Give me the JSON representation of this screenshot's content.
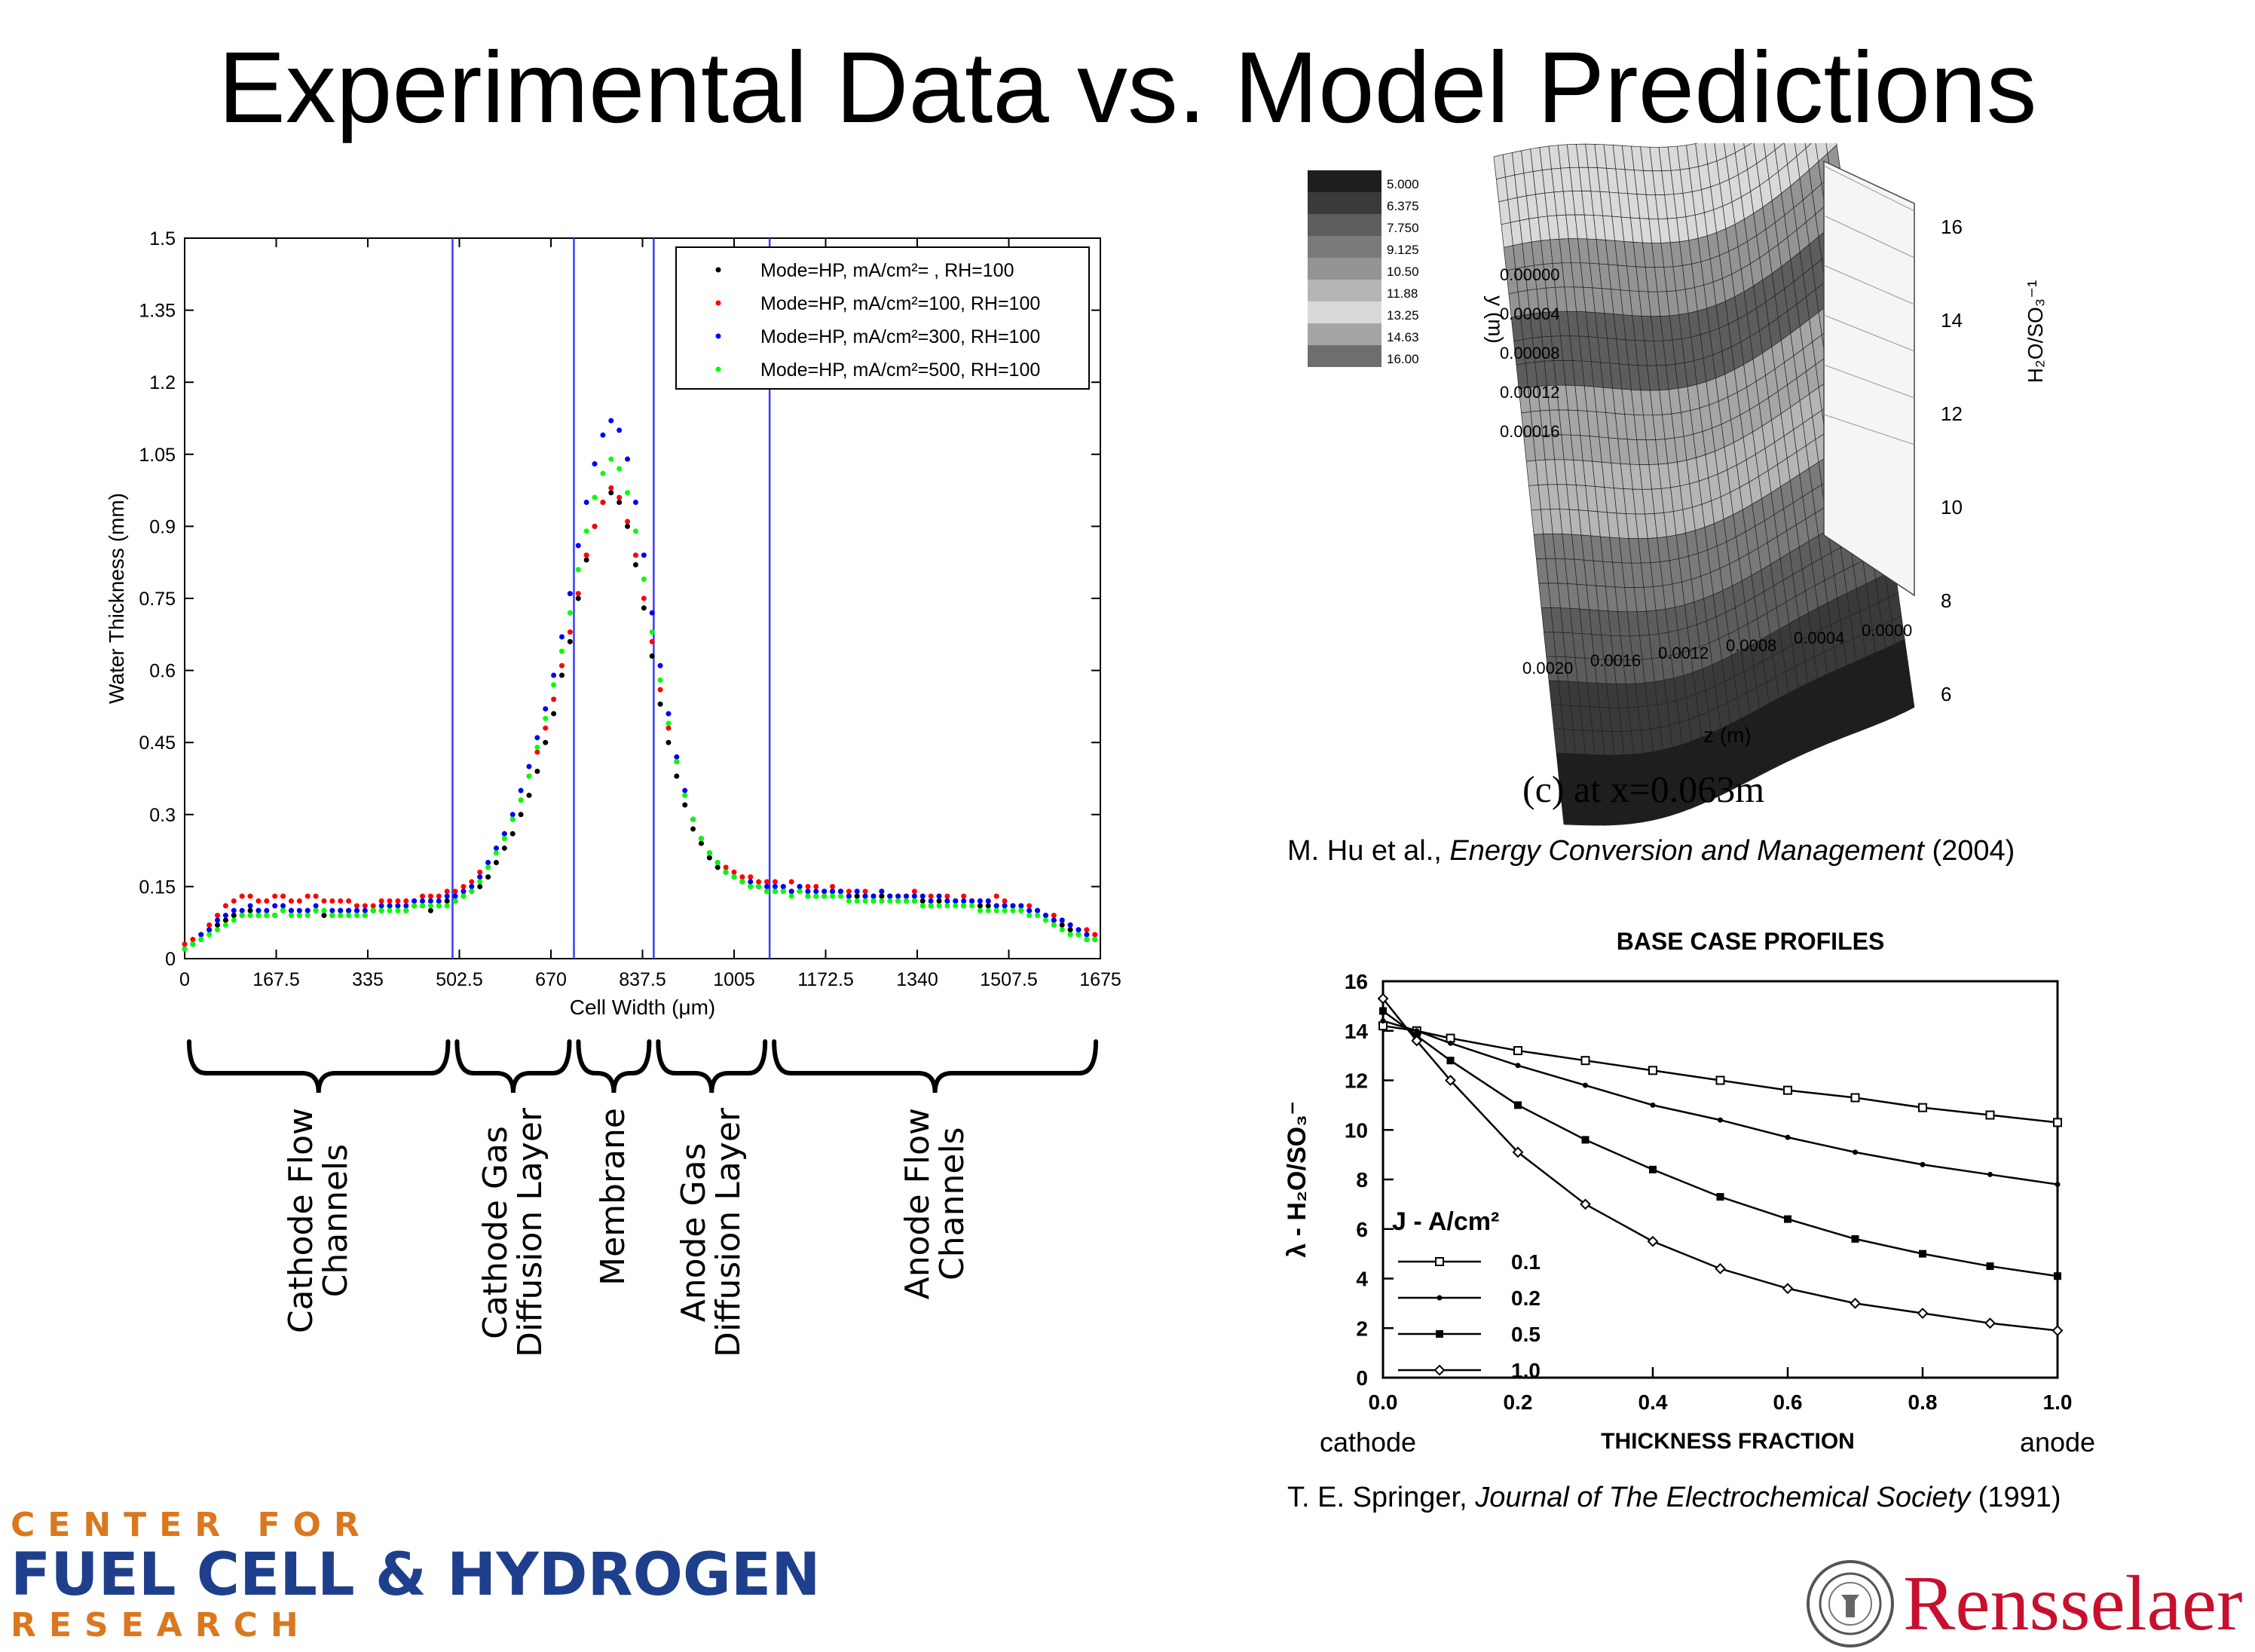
{
  "slide_title": "Experimental Data vs. Model Predictions",
  "chart_data": [
    {
      "type": "scatter",
      "ylabel": "Water Thickness (mm)",
      "xlabel": "Cell Width (μm)",
      "xlim": [
        0,
        1675
      ],
      "ylim": [
        0,
        1.5
      ],
      "x_ticks": [
        0,
        167.5,
        335,
        502.5,
        670,
        837.5,
        1005,
        1172.5,
        1340,
        1507.5,
        1675
      ],
      "x_tick_labels": [
        "0",
        "167.5",
        "335",
        "502.5",
        "670",
        "837.5",
        "1005",
        "1172.5",
        "1340",
        "1507.5",
        "1675"
      ],
      "y_ticks": [
        0,
        0.15,
        0.3,
        0.45,
        0.6,
        0.75,
        0.9,
        1.05,
        1.2,
        1.35,
        1.5
      ],
      "y_tick_labels": [
        "0",
        "0.15",
        "0.3",
        "0.45",
        "0.6",
        "0.75",
        "0.9",
        "1.05",
        "1.2",
        "1.35",
        "1.5"
      ],
      "vertical_lines_x": [
        490,
        712,
        858,
        1070
      ],
      "legend_position": "top-right",
      "x": [
        0,
        15,
        30,
        45,
        60,
        75,
        90,
        105,
        120,
        135,
        150,
        165,
        180,
        195,
        210,
        225,
        240,
        255,
        270,
        285,
        300,
        315,
        330,
        345,
        360,
        375,
        390,
        405,
        420,
        435,
        450,
        465,
        480,
        495,
        510,
        525,
        540,
        555,
        570,
        585,
        600,
        615,
        630,
        645,
        660,
        675,
        690,
        705,
        720,
        735,
        750,
        765,
        780,
        795,
        810,
        825,
        840,
        855,
        870,
        885,
        900,
        915,
        930,
        945,
        960,
        975,
        990,
        1005,
        1020,
        1035,
        1050,
        1065,
        1080,
        1095,
        1110,
        1125,
        1140,
        1155,
        1170,
        1185,
        1200,
        1215,
        1230,
        1245,
        1260,
        1275,
        1290,
        1305,
        1320,
        1335,
        1350,
        1365,
        1380,
        1395,
        1410,
        1425,
        1440,
        1455,
        1470,
        1485,
        1500,
        1515,
        1530,
        1545,
        1560,
        1575,
        1590,
        1605,
        1620,
        1635,
        1650,
        1665
      ],
      "series": [
        {
          "name": "Mode=HP, mA/cm²=   , RH=100",
          "color": "#000000",
          "values": [
            0.02,
            0.03,
            0.04,
            0.06,
            0.07,
            0.08,
            0.09,
            0.09,
            0.1,
            0.1,
            0.09,
            0.09,
            0.1,
            0.1,
            0.09,
            0.1,
            0.1,
            0.09,
            0.09,
            0.1,
            0.1,
            0.1,
            0.09,
            0.1,
            0.1,
            0.11,
            0.11,
            0.1,
            0.11,
            0.11,
            0.1,
            0.11,
            0.12,
            0.12,
            0.13,
            0.14,
            0.15,
            0.17,
            0.2,
            0.23,
            0.26,
            0.3,
            0.34,
            0.39,
            0.45,
            0.51,
            0.59,
            0.66,
            0.75,
            0.83,
            0.9,
            0.95,
            0.97,
            0.95,
            0.9,
            0.82,
            0.73,
            0.63,
            0.53,
            0.45,
            0.38,
            0.32,
            0.27,
            0.24,
            0.21,
            0.19,
            0.18,
            0.17,
            0.16,
            0.15,
            0.15,
            0.14,
            0.14,
            0.14,
            0.14,
            0.14,
            0.13,
            0.13,
            0.13,
            0.14,
            0.14,
            0.13,
            0.13,
            0.13,
            0.12,
            0.13,
            0.13,
            0.12,
            0.12,
            0.12,
            0.12,
            0.11,
            0.12,
            0.12,
            0.12,
            0.11,
            0.12,
            0.11,
            0.11,
            0.11,
            0.11,
            0.11,
            0.1,
            0.1,
            0.1,
            0.09,
            0.08,
            0.07,
            0.06,
            0.05,
            0.04,
            0.04
          ]
        },
        {
          "name": "Mode=HP, mA/cm²=100, RH=100",
          "color": "#ff0000",
          "values": [
            0.03,
            0.04,
            0.05,
            0.07,
            0.09,
            0.11,
            0.12,
            0.13,
            0.13,
            0.12,
            0.12,
            0.13,
            0.13,
            0.12,
            0.12,
            0.13,
            0.13,
            0.12,
            0.12,
            0.12,
            0.12,
            0.11,
            0.11,
            0.11,
            0.12,
            0.12,
            0.12,
            0.12,
            0.12,
            0.13,
            0.13,
            0.13,
            0.14,
            0.14,
            0.15,
            0.16,
            0.18,
            0.2,
            0.23,
            0.26,
            0.29,
            0.33,
            0.38,
            0.43,
            0.48,
            0.54,
            0.61,
            0.68,
            0.76,
            0.84,
            0.9,
            0.95,
            0.98,
            0.96,
            0.91,
            0.84,
            0.75,
            0.66,
            0.56,
            0.48,
            0.41,
            0.34,
            0.29,
            0.25,
            0.22,
            0.2,
            0.19,
            0.18,
            0.17,
            0.17,
            0.16,
            0.16,
            0.16,
            0.15,
            0.16,
            0.15,
            0.15,
            0.15,
            0.14,
            0.15,
            0.14,
            0.14,
            0.14,
            0.14,
            0.13,
            0.14,
            0.13,
            0.13,
            0.13,
            0.14,
            0.13,
            0.13,
            0.13,
            0.13,
            0.12,
            0.13,
            0.12,
            0.12,
            0.12,
            0.13,
            0.12,
            0.11,
            0.11,
            0.11,
            0.1,
            0.09,
            0.09,
            0.08,
            0.07,
            0.06,
            0.06,
            0.05
          ]
        },
        {
          "name": "Mode=HP, mA/cm²=300, RH=100",
          "color": "#0000ff",
          "values": [
            0.02,
            0.03,
            0.05,
            0.06,
            0.08,
            0.09,
            0.1,
            0.1,
            0.11,
            0.1,
            0.1,
            0.11,
            0.11,
            0.1,
            0.1,
            0.1,
            0.11,
            0.1,
            0.1,
            0.1,
            0.1,
            0.1,
            0.1,
            0.1,
            0.11,
            0.11,
            0.11,
            0.11,
            0.12,
            0.12,
            0.12,
            0.12,
            0.13,
            0.13,
            0.14,
            0.15,
            0.17,
            0.2,
            0.23,
            0.26,
            0.3,
            0.35,
            0.4,
            0.46,
            0.52,
            0.59,
            0.67,
            0.76,
            0.86,
            0.95,
            1.03,
            1.09,
            1.12,
            1.1,
            1.04,
            0.95,
            0.84,
            0.72,
            0.61,
            0.51,
            0.42,
            0.35,
            0.29,
            0.25,
            0.22,
            0.2,
            0.18,
            0.17,
            0.16,
            0.16,
            0.15,
            0.15,
            0.15,
            0.15,
            0.14,
            0.15,
            0.14,
            0.14,
            0.14,
            0.14,
            0.14,
            0.13,
            0.14,
            0.13,
            0.13,
            0.14,
            0.13,
            0.13,
            0.13,
            0.13,
            0.13,
            0.12,
            0.13,
            0.12,
            0.12,
            0.12,
            0.12,
            0.12,
            0.12,
            0.11,
            0.11,
            0.11,
            0.11,
            0.1,
            0.1,
            0.09,
            0.08,
            0.08,
            0.07,
            0.06,
            0.05,
            0.04
          ]
        },
        {
          "name": "Mode=HP, mA/cm²=500, RH=100",
          "color": "#00ff00",
          "values": [
            0.02,
            0.03,
            0.04,
            0.05,
            0.06,
            0.07,
            0.08,
            0.09,
            0.09,
            0.09,
            0.09,
            0.09,
            0.1,
            0.09,
            0.09,
            0.09,
            0.1,
            0.1,
            0.09,
            0.09,
            0.09,
            0.09,
            0.09,
            0.1,
            0.1,
            0.1,
            0.1,
            0.1,
            0.11,
            0.11,
            0.11,
            0.11,
            0.11,
            0.12,
            0.13,
            0.14,
            0.16,
            0.19,
            0.22,
            0.25,
            0.29,
            0.33,
            0.38,
            0.44,
            0.5,
            0.57,
            0.64,
            0.72,
            0.81,
            0.89,
            0.96,
            1.01,
            1.04,
            1.02,
            0.97,
            0.89,
            0.79,
            0.68,
            0.58,
            0.49,
            0.41,
            0.34,
            0.29,
            0.25,
            0.22,
            0.2,
            0.18,
            0.17,
            0.16,
            0.15,
            0.15,
            0.14,
            0.14,
            0.14,
            0.13,
            0.14,
            0.13,
            0.13,
            0.13,
            0.13,
            0.13,
            0.12,
            0.12,
            0.12,
            0.12,
            0.12,
            0.12,
            0.12,
            0.12,
            0.12,
            0.11,
            0.11,
            0.11,
            0.11,
            0.11,
            0.11,
            0.11,
            0.1,
            0.1,
            0.1,
            0.1,
            0.1,
            0.1,
            0.09,
            0.09,
            0.08,
            0.07,
            0.06,
            0.05,
            0.05,
            0.04,
            0.04
          ]
        }
      ]
    },
    {
      "type": "surface",
      "zaxis_title": "H₂O/SO₃⁻¹",
      "y_axis_title": "y (m)",
      "x_axis_title": "z (m)",
      "y_tick_labels": [
        "0.00000",
        "0.00004",
        "0.00008",
        "0.00012",
        "0.00016"
      ],
      "x_tick_labels": [
        "0.0020",
        "0.0016",
        "0.0012",
        "0.0008",
        "0.0004",
        "0.0000"
      ],
      "z_tick_labels": [
        "16",
        "14",
        "12",
        "10",
        "8",
        "6"
      ],
      "color_scale_labels": [
        "5.000",
        "6.375",
        "7.750",
        "9.125",
        "10.50",
        "11.88",
        "13.25",
        "14.63",
        "16.00"
      ],
      "caption": "(c) at x=0.063m"
    },
    {
      "type": "line",
      "title": "BASE CASE PROFILES",
      "ylabel": "λ - H₂O/SO₃⁻",
      "xlabel": "THICKNESS FRACTION",
      "x_left_label": "cathode",
      "x_right_label": "anode",
      "xlim": [
        0,
        1
      ],
      "ylim": [
        0,
        16
      ],
      "x_tick_labels": [
        "0.0",
        "0.2",
        "0.4",
        "0.6",
        "0.8",
        "1.0"
      ],
      "y_tick_labels": [
        "0",
        "2",
        "4",
        "6",
        "8",
        "10",
        "12",
        "14",
        "16"
      ],
      "legend_title": "J - A/cm²",
      "x": [
        0,
        0.05,
        0.1,
        0.2,
        0.3,
        0.4,
        0.5,
        0.6,
        0.7,
        0.8,
        0.9,
        1.0
      ],
      "series": [
        {
          "name": "0.1",
          "values": [
            14.2,
            14.0,
            13.7,
            13.2,
            12.8,
            12.4,
            12.0,
            11.6,
            11.3,
            10.9,
            10.6,
            10.3
          ]
        },
        {
          "name": "0.2",
          "values": [
            14.4,
            14.0,
            13.5,
            12.6,
            11.8,
            11.0,
            10.4,
            9.7,
            9.1,
            8.6,
            8.2,
            7.8
          ]
        },
        {
          "name": "0.5",
          "values": [
            14.8,
            13.8,
            12.8,
            11.0,
            9.6,
            8.4,
            7.3,
            6.4,
            5.6,
            5.0,
            4.5,
            4.1
          ]
        },
        {
          "name": "1.0",
          "values": [
            15.3,
            13.6,
            12.0,
            9.1,
            7.0,
            5.5,
            4.4,
            3.6,
            3.0,
            2.6,
            2.2,
            1.9
          ]
        }
      ]
    }
  ],
  "region_labels": [
    [
      "Cathode Flow",
      "Channels"
    ],
    [
      "Cathode Gas",
      "Diffusion Layer"
    ],
    [
      "Membrane"
    ],
    [
      "Anode Gas",
      "Diffusion Layer"
    ],
    [
      "Anode Flow",
      "Channels"
    ]
  ],
  "citations": {
    "hu": {
      "authors": "M. Hu et al., ",
      "journal": "Energy Conversion and Management",
      "year": " (2004)"
    },
    "springer": {
      "authors": "T. E. Springer, ",
      "journal": "Journal of The Electrochemical Society",
      "year": " (1991)"
    }
  },
  "logos": {
    "center_line1": "CENTER FOR",
    "center_line2": "FUEL CELL & HYDROGEN",
    "center_line3": "RESEARCH",
    "rensselaer": "Rensselaer"
  }
}
